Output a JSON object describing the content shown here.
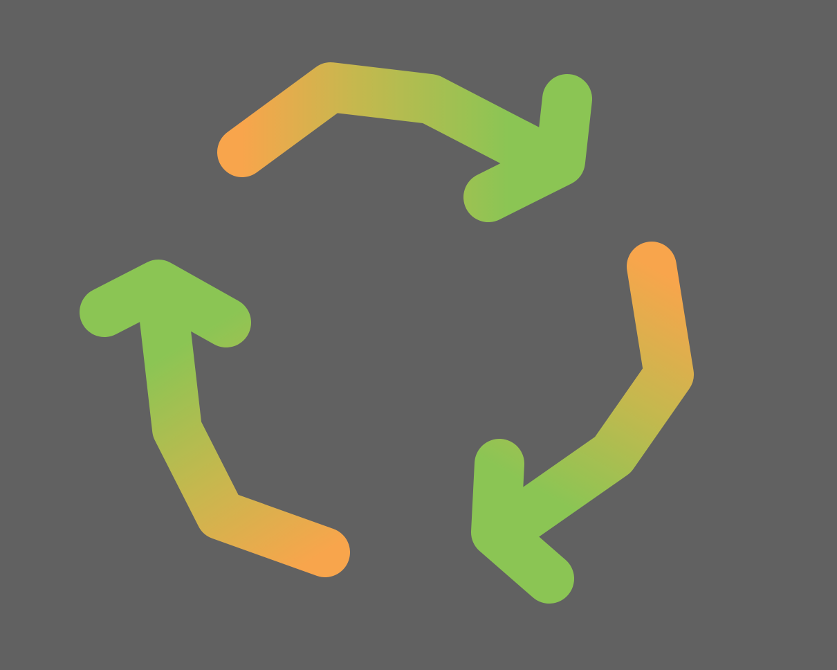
{
  "background_color": "#616161",
  "icon": {
    "name": "recycle-arrows-icon",
    "arrow_count": 3,
    "colors": {
      "tail": "#F8A54C",
      "middle": "#C5B84E",
      "head": "#8BC554"
    }
  }
}
